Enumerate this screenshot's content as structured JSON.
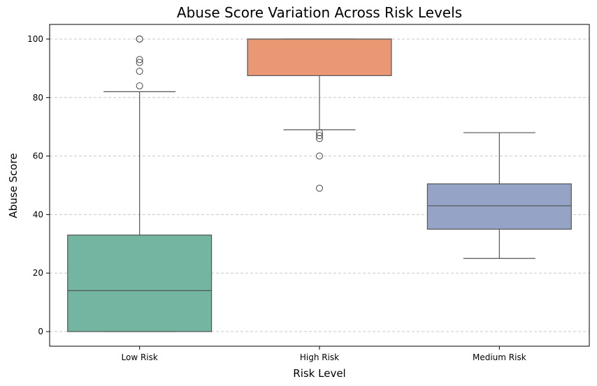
{
  "chart_data": {
    "type": "box",
    "title": "Abuse Score Variation Across Risk Levels",
    "xlabel": "Risk Level",
    "ylabel": "Abuse Score",
    "ylim": [
      -5,
      105
    ],
    "yticks": [
      0,
      20,
      40,
      60,
      80,
      100
    ],
    "grid": "y-dashed",
    "categories": [
      "Low Risk",
      "High Risk",
      "Medium Risk"
    ],
    "boxes": [
      {
        "category": "Low Risk",
        "whisker_low": 0,
        "q1": 0,
        "median": 14,
        "q3": 33,
        "whisker_high": 82,
        "outliers": [
          84,
          89,
          92,
          93,
          100,
          100
        ],
        "color": "#72b5a1"
      },
      {
        "category": "High Risk",
        "whisker_low": 69,
        "q1": 87.5,
        "median": 100,
        "q3": 100,
        "whisker_high": 100,
        "outliers": [
          68,
          67,
          66,
          60,
          49
        ],
        "color": "#ea9874"
      },
      {
        "category": "Medium Risk",
        "whisker_low": 25,
        "q1": 35,
        "median": 43,
        "q3": 50.5,
        "whisker_high": 68,
        "outliers": [],
        "color": "#95a4c6"
      }
    ]
  }
}
